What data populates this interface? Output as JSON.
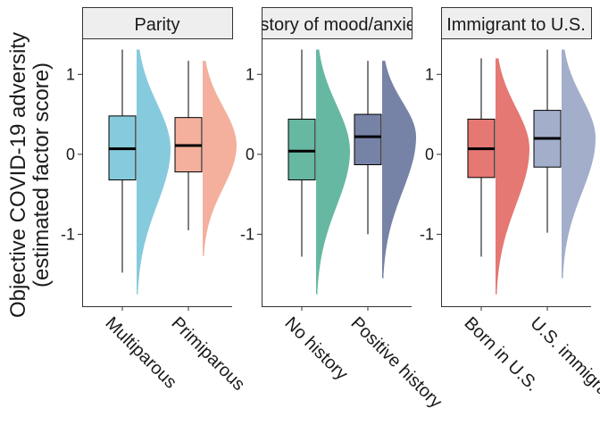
{
  "chart_data": {
    "type": "raincloud",
    "ylabel_line1": "Objective COVID-19 adversity",
    "ylabel_line2": "(estimated factor score)",
    "ylim": [
      -1.9,
      1.45
    ],
    "y_ticks": [
      1,
      0,
      -1
    ],
    "y_tick_labels": [
      "1",
      "0",
      "-1"
    ],
    "grid": false,
    "panels": [
      {
        "strip": "Parity",
        "groups": [
          {
            "label": "Multiparous",
            "color": "#86CADD",
            "box": {
              "min": -1.48,
              "q1": -0.32,
              "median": 0.07,
              "q3": 0.48,
              "max": 1.31
            },
            "density": {
              "min": -1.75,
              "max": 1.31
            }
          },
          {
            "label": "Primiparous",
            "color": "#F4B09C",
            "box": {
              "min": -0.95,
              "q1": -0.22,
              "median": 0.11,
              "q3": 0.46,
              "max": 1.17
            },
            "density": {
              "min": -1.27,
              "max": 1.17
            }
          }
        ]
      },
      {
        "strip": "History of mood/anxiety",
        "groups": [
          {
            "label": "No history",
            "color": "#66B8A2",
            "box": {
              "min": -1.28,
              "q1": -0.32,
              "median": 0.04,
              "q3": 0.44,
              "max": 1.31
            },
            "density": {
              "min": -1.75,
              "max": 1.31
            }
          },
          {
            "label": "Positive history",
            "color": "#7683A6",
            "box": {
              "min": -1.0,
              "q1": -0.13,
              "median": 0.22,
              "q3": 0.5,
              "max": 1.17
            },
            "density": {
              "min": -1.55,
              "max": 1.17
            }
          }
        ]
      },
      {
        "strip": "Immigrant to U.S.",
        "groups": [
          {
            "label": "Born in U.S.",
            "color": "#E57873",
            "box": {
              "min": -1.28,
              "q1": -0.29,
              "median": 0.07,
              "q3": 0.44,
              "max": 1.2
            },
            "density": {
              "min": -1.75,
              "max": 1.2
            }
          },
          {
            "label": "U.S. immigrant",
            "color": "#A3AECB",
            "box": {
              "min": -0.98,
              "q1": -0.16,
              "median": 0.2,
              "q3": 0.55,
              "max": 1.31
            },
            "density": {
              "min": -1.55,
              "max": 1.31
            }
          }
        ]
      }
    ]
  }
}
